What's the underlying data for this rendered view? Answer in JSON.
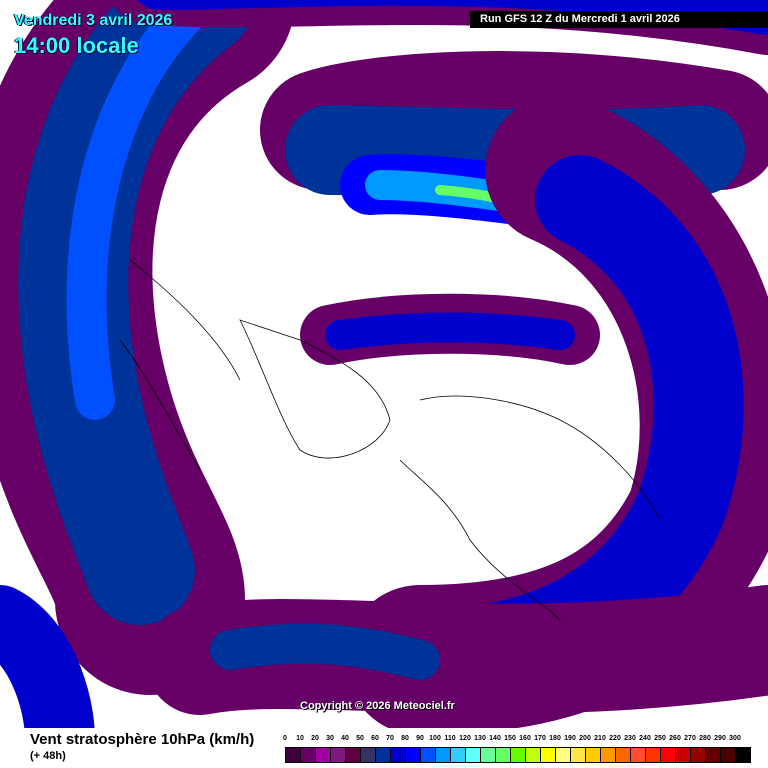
{
  "header": {
    "date": "Vendredi 3 avril 2026",
    "time": "14:00 locale",
    "run": "Run GFS 12 Z du Mercredi 1 avril 2026"
  },
  "map": {
    "copyright": "Copyright © 2026 Meteociel.fr",
    "projection": "polar stereographic, northern hemisphere",
    "icons": [
      "wind-arrow"
    ]
  },
  "footer": {
    "title": "Vent stratosphère 10hPa (km/h)",
    "subtitle": "(+ 48h)"
  },
  "legend": {
    "labels": [
      "0",
      "10",
      "20",
      "30",
      "40",
      "50",
      "60",
      "70",
      "80",
      "90",
      "100",
      "110",
      "120",
      "130",
      "140",
      "150",
      "160",
      "170",
      "180",
      "190",
      "200",
      "210",
      "220",
      "230",
      "240",
      "250",
      "260",
      "270",
      "280",
      "290",
      "300"
    ],
    "colors": [
      "#3f0040",
      "#660066",
      "#a000a0",
      "#801880",
      "#600040",
      "#333366",
      "#003399",
      "#0000cc",
      "#0000ff",
      "#0050ff",
      "#0099ff",
      "#33ccff",
      "#66ffff",
      "#66ff99",
      "#66ff66",
      "#66ff00",
      "#c0ff10",
      "#ffff00",
      "#ffff80",
      "#ffe64c",
      "#ffcc00",
      "#ff9900",
      "#ff6600",
      "#ff4c33",
      "#ff3300",
      "#ff0000",
      "#cc0000",
      "#990000",
      "#660000",
      "#4c0000",
      "#000000"
    ]
  }
}
